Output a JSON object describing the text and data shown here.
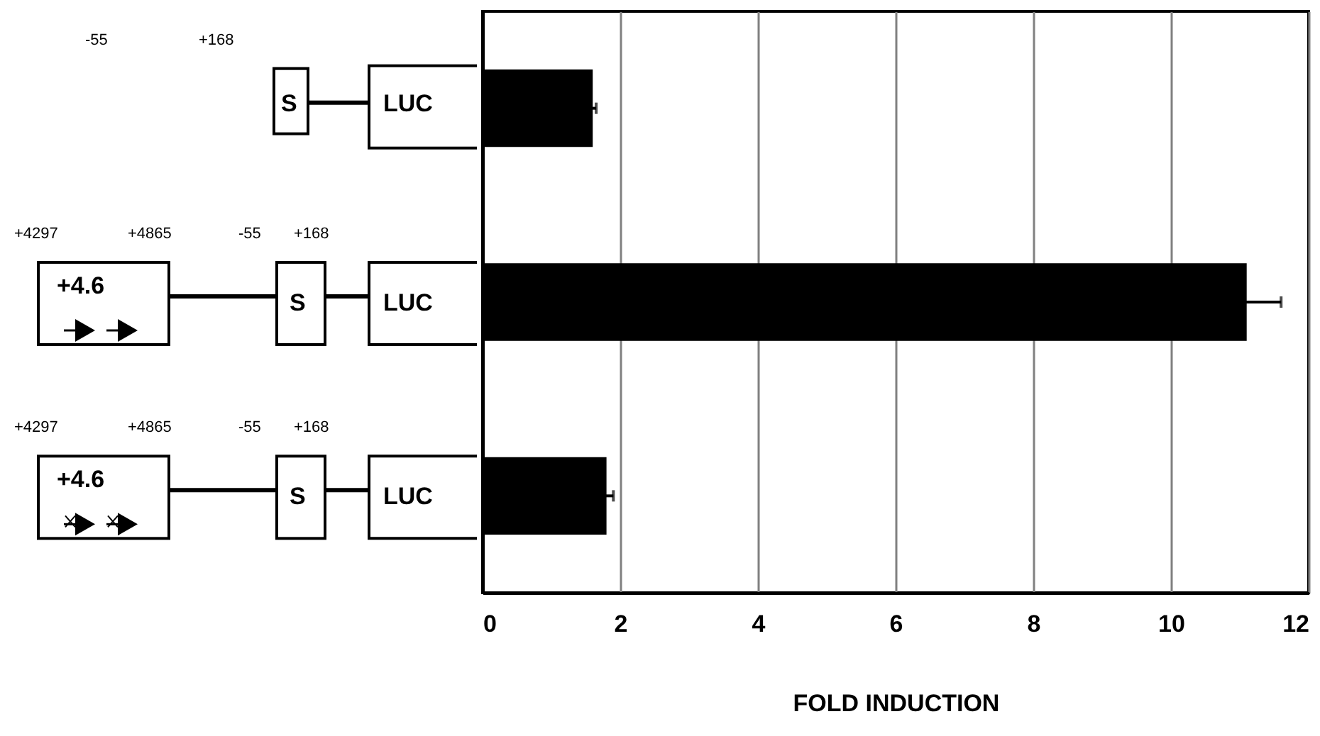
{
  "chart_data": {
    "type": "bar",
    "orientation": "horizontal",
    "categories": [
      null,
      null,
      null
    ],
    "values": [
      1.6,
      11.1,
      1.8
    ],
    "errors": [
      0.05,
      0.5,
      0.1
    ],
    "color": "#000000",
    "xlim": [
      0,
      12
    ],
    "xticks": [
      0,
      2,
      4,
      6,
      8,
      10,
      12
    ],
    "grid": "x",
    "xlabel": "FOLD INDUCTION",
    "annotations": [
      "-55",
      "+168",
      "S",
      "LUC",
      "+4297",
      "+4865",
      "-55",
      "+168",
      "+4.6",
      "S",
      "LUC",
      "+4297",
      "+4865",
      "-55",
      "+168",
      "+4.6",
      "S",
      "LUC"
    ]
  }
}
